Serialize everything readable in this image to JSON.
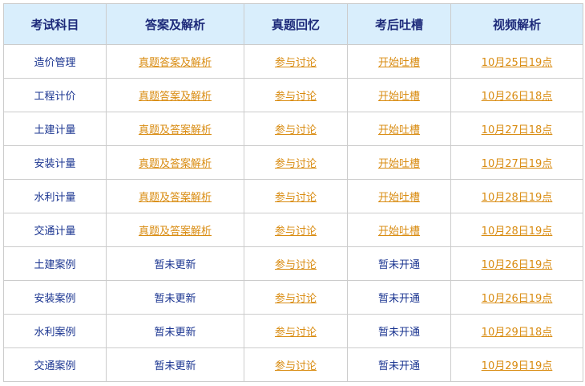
{
  "headers": [
    "考试科目",
    "答案及解析",
    "真题回忆",
    "考后吐槽",
    "视频解析"
  ],
  "rows": [
    {
      "subject": "造价管理",
      "answer": "真题答案及解析",
      "answer_link": true,
      "recall": "参与讨论",
      "complain": "开始吐槽",
      "complain_link": true,
      "video": "10月25日19点"
    },
    {
      "subject": "工程计价",
      "answer": "真题答案及解析",
      "answer_link": true,
      "recall": "参与讨论",
      "complain": "开始吐槽",
      "complain_link": true,
      "video": "10月26日18点"
    },
    {
      "subject": "土建计量",
      "answer": "真题及答案解析",
      "answer_link": true,
      "recall": "参与讨论",
      "complain": "开始吐槽",
      "complain_link": true,
      "video": "10月27日18点"
    },
    {
      "subject": "安装计量",
      "answer": "真题及答案解析",
      "answer_link": true,
      "recall": "参与讨论",
      "complain": "开始吐槽",
      "complain_link": true,
      "video": "10月27日19点"
    },
    {
      "subject": "水利计量",
      "answer": "真题及答案解析",
      "answer_link": true,
      "recall": "参与讨论",
      "complain": "开始吐槽",
      "complain_link": true,
      "video": "10月28日19点"
    },
    {
      "subject": "交通计量",
      "answer": "真题及答案解析",
      "answer_link": true,
      "recall": "参与讨论",
      "complain": "开始吐槽",
      "complain_link": true,
      "video": "10月28日19点"
    },
    {
      "subject": "土建案例",
      "answer": "暂未更新",
      "answer_link": false,
      "recall": "参与讨论",
      "complain": "暂未开通",
      "complain_link": false,
      "video": "10月26日19点"
    },
    {
      "subject": "安装案例",
      "answer": "暂未更新",
      "answer_link": false,
      "recall": "参与讨论",
      "complain": "暂未开通",
      "complain_link": false,
      "video": "10月26日19点"
    },
    {
      "subject": "水利案例",
      "answer": "暂未更新",
      "answer_link": false,
      "recall": "参与讨论",
      "complain": "暂未开通",
      "complain_link": false,
      "video": "10月29日18点"
    },
    {
      "subject": "交通案例",
      "answer": "暂未更新",
      "answer_link": false,
      "recall": "参与讨论",
      "complain": "暂未开通",
      "complain_link": false,
      "video": "10月29日19点"
    }
  ],
  "colors": {
    "header_bg": "#d9eefc",
    "link": "#d98c12",
    "text": "#1a3490"
  }
}
